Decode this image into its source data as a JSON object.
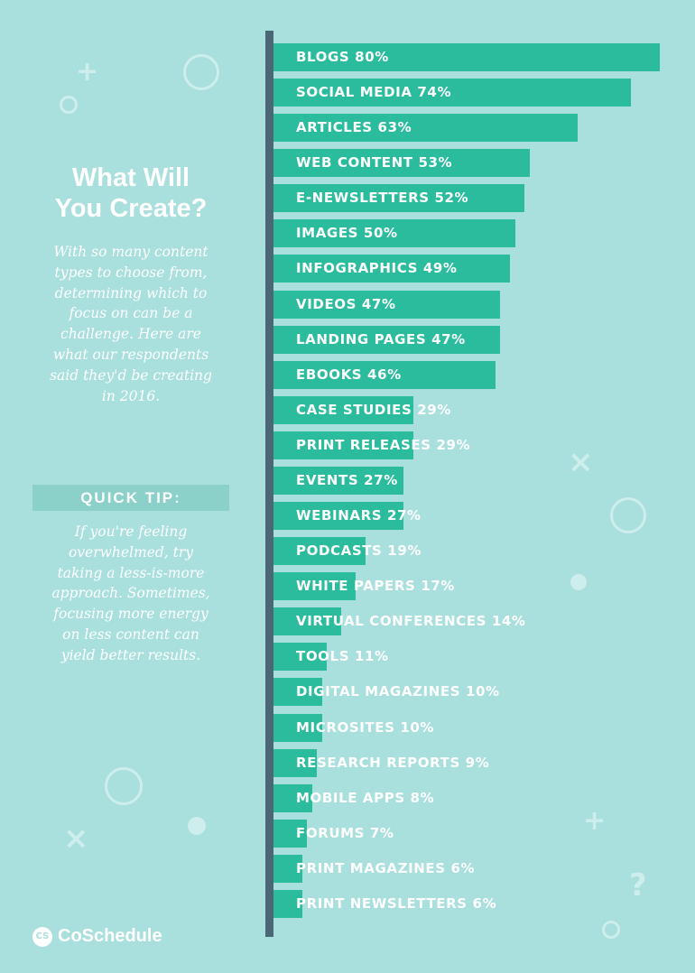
{
  "sidebar": {
    "title_line1": "What Will",
    "title_line2": "You Create?",
    "intro_lines": [
      "With so many content",
      "types to choose from,",
      "determining which to",
      "focus on can be a",
      "challenge. Here are",
      "what our respondents",
      "said they'd be creating",
      "in 2016."
    ],
    "tip_header": "QUICK TIP:",
    "tip_lines": [
      "If you're feeling",
      "overwhelmed, try",
      "taking a less-is-more",
      "approach. Sometimes,",
      "focusing more energy",
      "on less content can",
      "yield better results."
    ]
  },
  "logo": {
    "mark": "CS",
    "text": "CoSchedule"
  },
  "colors": {
    "background": "#a9dfdc",
    "bar": "#2bbc9e",
    "axis": "#4b6675",
    "tip_header_bg": "#8bd1c9",
    "decoration": "#cdeeec"
  },
  "chart_data": {
    "type": "bar",
    "orientation": "horizontal",
    "xlim": [
      0,
      80
    ],
    "grid": false,
    "categories": [
      "BLOGS",
      "SOCIAL MEDIA",
      "ARTICLES",
      "WEB CONTENT",
      "E-NEWSLETTERS",
      "IMAGES",
      "INFOGRAPHICS",
      "VIDEOS",
      "LANDING PAGES",
      "EBOOKS",
      "CASE STUDIES",
      "PRINT RELEASES",
      "EVENTS",
      "WEBINARS",
      "PODCASTS",
      "WHITE PAPERS",
      "VIRTUAL CONFERENCES",
      "TOOLS",
      "DIGITAL MAGAZINES",
      "MICROSITES",
      "RESEARCH REPORTS",
      "MOBILE APPS",
      "FORUMS",
      "PRINT MAGAZINES",
      "PRINT NEWSLETTERS"
    ],
    "values": [
      80,
      74,
      63,
      53,
      52,
      50,
      49,
      47,
      47,
      46,
      29,
      29,
      27,
      27,
      19,
      17,
      14,
      11,
      10,
      10,
      9,
      8,
      7,
      6,
      6
    ],
    "value_labels": [
      "80%",
      "74%",
      "63%",
      "53%",
      "52%",
      "50%",
      "49%",
      "47%",
      "47%",
      "46%",
      "29%",
      "29%",
      "27%",
      "27%",
      "19%",
      "17%",
      "14%",
      "11%",
      "10%",
      "10%",
      "9%",
      "8%",
      "7%",
      "6%",
      "6%"
    ]
  },
  "decorations": [
    "plus-icon",
    "ring-icon",
    "dot-icon",
    "x-icon",
    "question-icon"
  ]
}
